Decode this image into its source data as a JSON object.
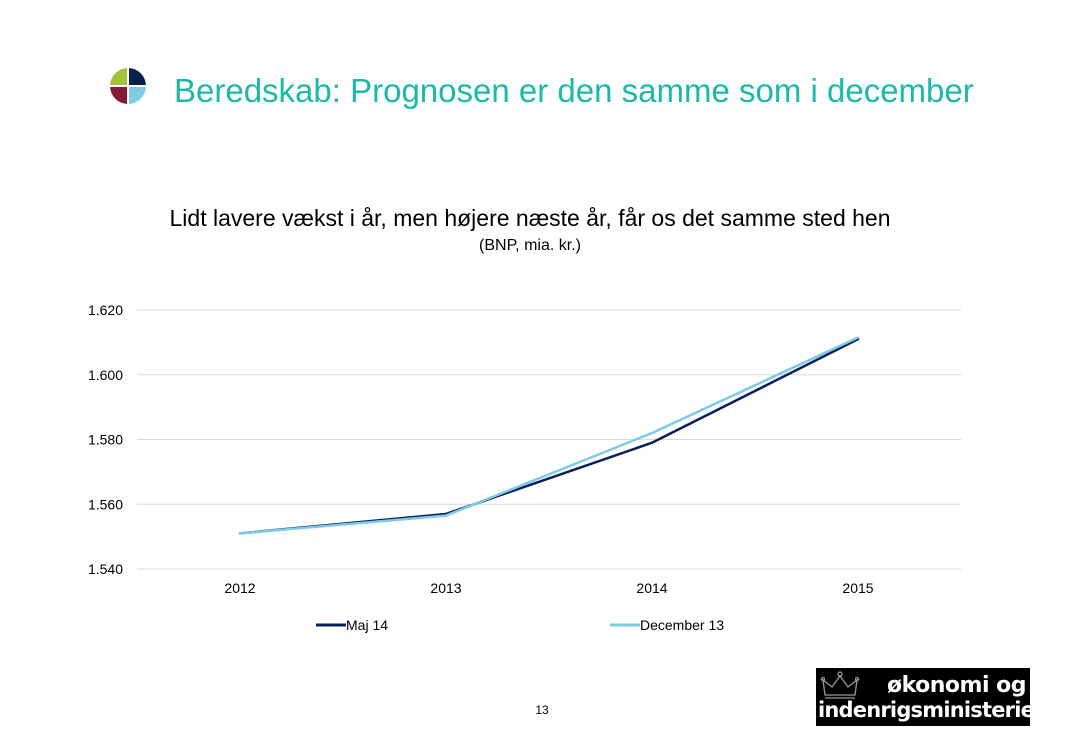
{
  "slide": {
    "title": "Beredskab: Prognosen er den samme som i december",
    "page_number": "13"
  },
  "logo": {
    "colors": [
      "#a6c23a",
      "#0b1f4f",
      "#8a1638",
      "#7ecbe6"
    ]
  },
  "ministry": {
    "line1": "økonomi og",
    "line2": "indenrigsministeriet"
  },
  "chart_data": {
    "type": "line",
    "title": "Lidt lavere vækst i år, men højere næste år, får os det samme sted hen",
    "subtitle": "(BNP, mia. kr.)",
    "categories": [
      "2012",
      "2013",
      "2014",
      "2015"
    ],
    "series": [
      {
        "name": "Maj 14",
        "values": [
          1551,
          1557,
          1579,
          1611
        ],
        "color": "#0b1f5c"
      },
      {
        "name": "December 13",
        "values": [
          1551,
          1556.5,
          1582,
          1611.5
        ],
        "color": "#7ecbe6"
      }
    ],
    "ylim": [
      1540,
      1620
    ],
    "yticks": [
      1540,
      1560,
      1580,
      1600,
      1620
    ],
    "ytick_labels": [
      "1.540",
      "1.560",
      "1.580",
      "1.600",
      "1.620"
    ],
    "grid": true,
    "legend_position": "bottom"
  }
}
